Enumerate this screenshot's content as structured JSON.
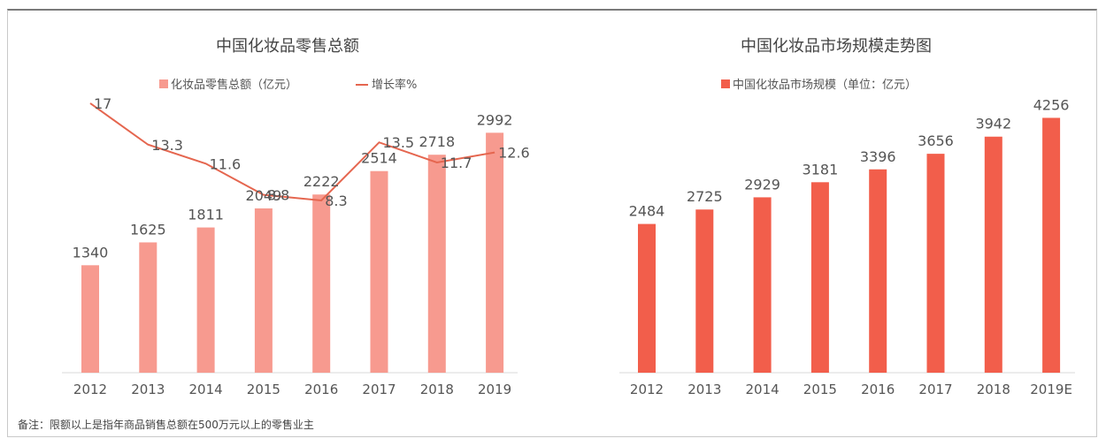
{
  "chart_data": [
    {
      "type": "bar+line",
      "title": "中国化妆品零售总额",
      "categories": [
        "2012",
        "2013",
        "2014",
        "2015",
        "2016",
        "2017",
        "2018",
        "2019"
      ],
      "series": [
        {
          "name": "化妆品零售总额（亿元）",
          "kind": "bar",
          "values": [
            1340,
            1625,
            1811,
            2049,
            2222,
            2514,
            2718,
            2992
          ]
        },
        {
          "name": "增长率%",
          "kind": "line",
          "values": [
            17,
            13.3,
            11.6,
            8.8,
            8.3,
            13.5,
            11.7,
            12.6
          ]
        }
      ],
      "bar_label_texts": [
        "1340",
        "1625",
        "1811",
        "2049",
        "2222",
        "2514",
        "2718",
        "2992"
      ],
      "line_label_texts": [
        "17",
        "13.3",
        "11.6",
        "8.8",
        "8.3",
        "13.5",
        "11.7",
        "12.6"
      ],
      "legend_position": "top-center",
      "colors": {
        "bar": "#f79a8f",
        "line": "#e5664f"
      }
    },
    {
      "type": "bar",
      "title": "中国化妆品市场规模走势图",
      "categories": [
        "2012",
        "2013",
        "2014",
        "2015",
        "2016",
        "2017",
        "2018",
        "2019E"
      ],
      "series": [
        {
          "name": "中国化妆品市场规模（单位：亿元）",
          "values": [
            2484,
            2725,
            2929,
            3181,
            3396,
            3656,
            3942,
            4256
          ]
        }
      ],
      "bar_label_texts": [
        "2484",
        "2725",
        "2929",
        "3181",
        "3396",
        "3656",
        "3942",
        "4256"
      ],
      "legend_position": "top-center",
      "colors": {
        "bar": "#f25e4b"
      }
    }
  ],
  "footnote": "备注：限额以上是指年商品销售总额在500万元以上的零售业主"
}
